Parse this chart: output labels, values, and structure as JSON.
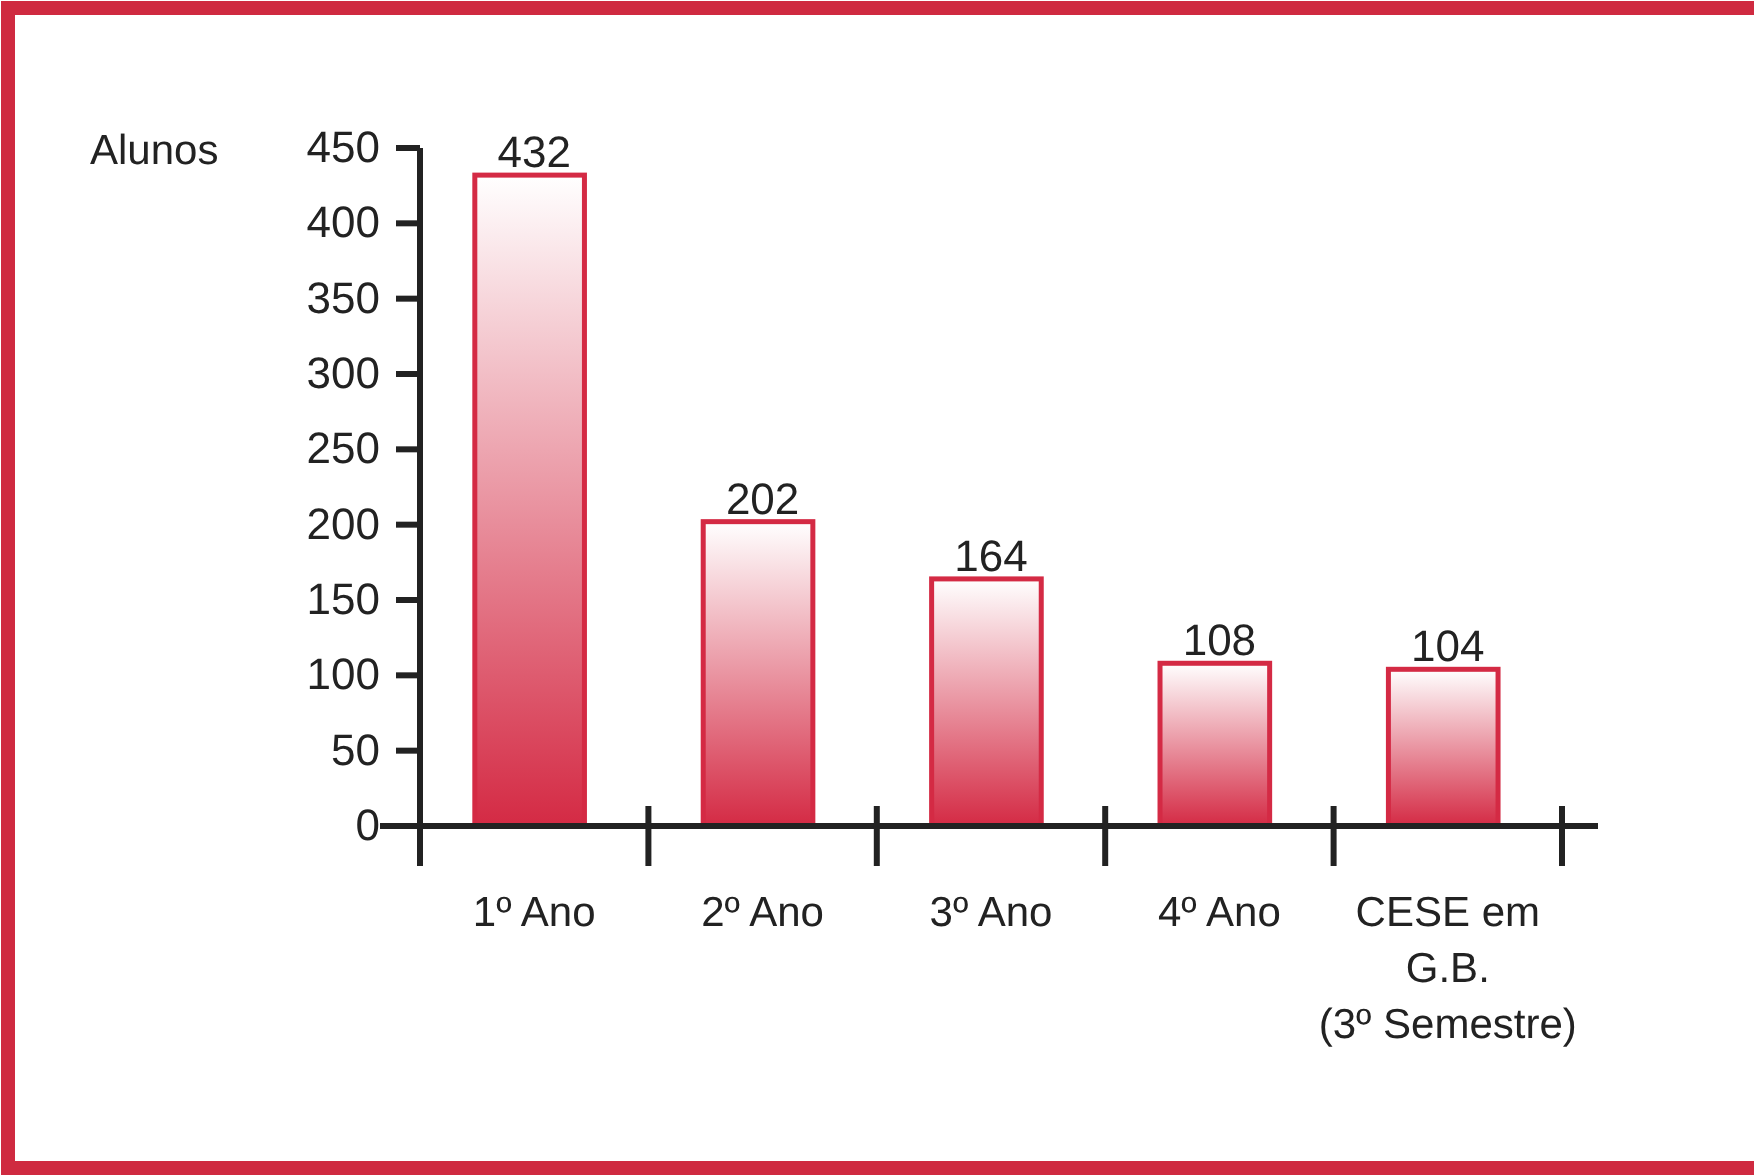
{
  "chart_data": {
    "type": "bar",
    "ylabel": "Alunos",
    "categories": [
      "1º Ano",
      "2º Ano",
      "3º Ano",
      "4º Ano",
      "CESE em G.B. (3º Semestre)"
    ],
    "values": [
      432,
      202,
      164,
      108,
      104
    ],
    "color": "#d42a44",
    "ylim": [
      0,
      450
    ],
    "yticks": [
      0,
      50,
      100,
      150,
      200,
      250,
      300,
      350,
      400,
      450
    ],
    "data_labels": true
  }
}
